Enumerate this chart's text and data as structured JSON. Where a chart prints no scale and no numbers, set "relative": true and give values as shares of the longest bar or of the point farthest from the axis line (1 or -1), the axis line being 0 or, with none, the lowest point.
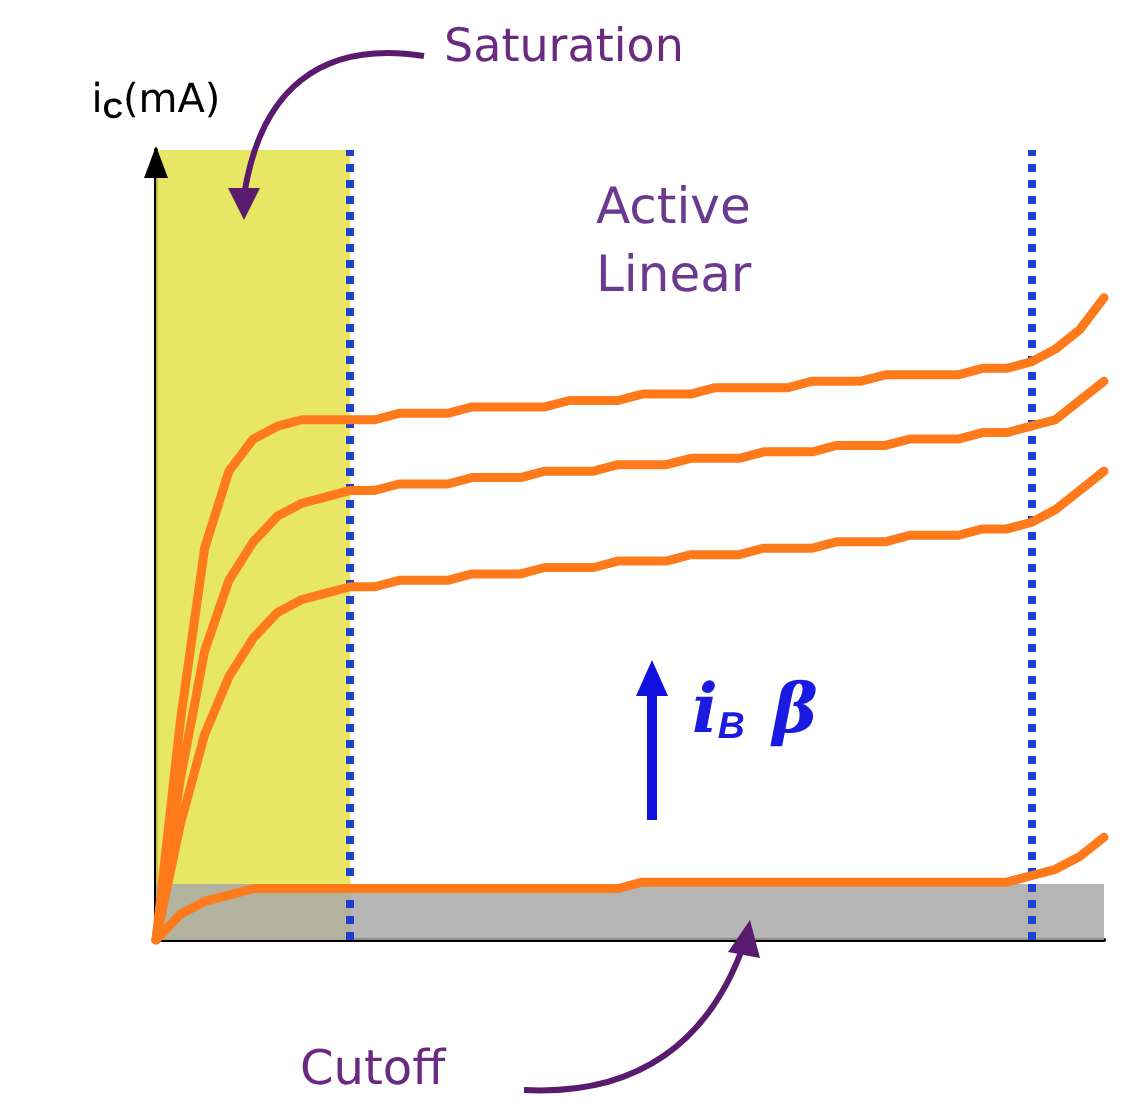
{
  "chart_data": {
    "type": "line",
    "relative": true,
    "ylabel": "i$_{C}$(mA)",
    "grid": false,
    "marker": "none",
    "line_style": "solid",
    "categories": [
      null,
      null,
      null,
      null,
      null,
      null,
      null,
      null,
      null,
      null,
      null,
      null,
      null,
      null,
      null,
      null,
      null,
      null,
      null,
      null,
      null,
      null,
      null,
      null,
      null,
      null,
      null,
      null,
      null,
      null,
      null,
      null,
      null,
      null,
      null,
      null,
      null,
      null,
      null,
      null
    ],
    "series": [
      {
        "color": "#ff7a1a",
        "values": [
          0,
          0.34,
          0.61,
          0.73,
          0.78,
          0.8,
          0.81,
          0.81,
          0.81,
          0.81,
          0.82,
          0.82,
          0.82,
          0.83,
          0.83,
          0.83,
          0.83,
          0.84,
          0.84,
          0.84,
          0.85,
          0.85,
          0.85,
          0.86,
          0.86,
          0.86,
          0.86,
          0.87,
          0.87,
          0.87,
          0.88,
          0.88,
          0.88,
          0.88,
          0.89,
          0.89,
          0.9,
          0.92,
          0.95,
          1.0
        ]
      },
      {
        "color": "#ff7a1a",
        "values": [
          0,
          0.25,
          0.45,
          0.56,
          0.62,
          0.66,
          0.68,
          0.69,
          0.7,
          0.7,
          0.71,
          0.71,
          0.71,
          0.72,
          0.72,
          0.72,
          0.73,
          0.73,
          0.73,
          0.74,
          0.74,
          0.74,
          0.75,
          0.75,
          0.75,
          0.76,
          0.76,
          0.76,
          0.77,
          0.77,
          0.77,
          0.78,
          0.78,
          0.78,
          0.79,
          0.79,
          0.8,
          0.81,
          0.84,
          0.87
        ]
      },
      {
        "color": "#ff7a1a",
        "values": [
          0,
          0.18,
          0.32,
          0.41,
          0.47,
          0.51,
          0.53,
          0.54,
          0.55,
          0.55,
          0.56,
          0.56,
          0.56,
          0.57,
          0.57,
          0.57,
          0.58,
          0.58,
          0.58,
          0.59,
          0.59,
          0.59,
          0.6,
          0.6,
          0.6,
          0.61,
          0.61,
          0.61,
          0.62,
          0.62,
          0.62,
          0.63,
          0.63,
          0.63,
          0.64,
          0.64,
          0.65,
          0.67,
          0.7,
          0.73
        ]
      },
      {
        "color": "#ff7a1a",
        "values": [
          0,
          0.04,
          0.06,
          0.07,
          0.08,
          0.08,
          0.08,
          0.08,
          0.08,
          0.08,
          0.08,
          0.08,
          0.08,
          0.08,
          0.08,
          0.08,
          0.08,
          0.08,
          0.08,
          0.08,
          0.09,
          0.09,
          0.09,
          0.09,
          0.09,
          0.09,
          0.09,
          0.09,
          0.09,
          0.09,
          0.09,
          0.09,
          0.09,
          0.09,
          0.09,
          0.09,
          0.1,
          0.11,
          0.13,
          0.16
        ]
      }
    ],
    "bands": [
      {
        "axis": "y",
        "from": 0,
        "to": 0.087,
        "label": "Cutoff",
        "color": "#a8a8a8"
      }
    ],
    "annotations": [
      "Active Linear",
      "i$_{B}$ β",
      "Saturation"
    ]
  }
}
